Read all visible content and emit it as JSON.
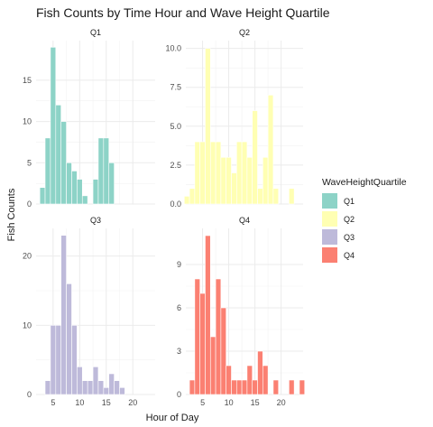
{
  "chart_data": {
    "type": "bar",
    "subtype": "faceted-histogram",
    "title": "Fish Counts by Time Hour and Wave Height Quartile",
    "xlabel": "Hour of Day",
    "ylabel": "Fish Counts",
    "legend": {
      "title": "WaveHeightQuartile",
      "placement": "right",
      "items": [
        "Q1",
        "Q2",
        "Q3",
        "Q4"
      ]
    },
    "grid": true,
    "xlim": [
      1.8,
      24.2
    ],
    "x_ticks": [
      5,
      10,
      15,
      20
    ],
    "bin_width": 1,
    "facets": [
      {
        "name": "Q1",
        "color": "#8DD3C7",
        "ylim": [
          0,
          19.8
        ],
        "y_ticks": [
          0,
          5,
          10,
          15
        ],
        "bins": [
          [
            3,
            2
          ],
          [
            4,
            8
          ],
          [
            5,
            19
          ],
          [
            6,
            12
          ],
          [
            7,
            10
          ],
          [
            8,
            5
          ],
          [
            9,
            4
          ],
          [
            10,
            3
          ],
          [
            11,
            1
          ],
          [
            13,
            3
          ],
          [
            14,
            8
          ],
          [
            15,
            8
          ],
          [
            16,
            5
          ]
        ]
      },
      {
        "name": "Q2",
        "color": "#FFFFB3",
        "ylim": [
          0,
          10.5
        ],
        "y_ticks": [
          0,
          2.5,
          5.0,
          7.5,
          10.0
        ],
        "bins": [
          [
            2,
            0.5
          ],
          [
            3,
            1
          ],
          [
            4,
            4
          ],
          [
            5,
            4
          ],
          [
            6,
            10
          ],
          [
            7,
            4
          ],
          [
            8,
            4
          ],
          [
            9,
            3
          ],
          [
            10,
            3
          ],
          [
            11,
            2
          ],
          [
            12,
            4
          ],
          [
            13,
            4
          ],
          [
            14,
            3
          ],
          [
            15,
            6
          ],
          [
            16,
            1
          ],
          [
            17,
            3
          ],
          [
            18,
            7
          ],
          [
            19,
            1
          ],
          [
            22,
            1
          ]
        ]
      },
      {
        "name": "Q3",
        "color": "#BEBADA",
        "ylim": [
          0,
          24
        ],
        "y_ticks": [
          0,
          10,
          20
        ],
        "bins": [
          [
            4,
            2
          ],
          [
            5,
            10
          ],
          [
            6,
            10
          ],
          [
            7,
            23
          ],
          [
            8,
            16
          ],
          [
            9,
            10
          ],
          [
            10,
            4
          ],
          [
            11,
            2
          ],
          [
            12,
            2
          ],
          [
            13,
            4
          ],
          [
            14,
            2
          ],
          [
            15,
            1
          ],
          [
            16,
            3
          ],
          [
            17,
            2
          ],
          [
            18,
            1
          ]
        ]
      },
      {
        "name": "Q4",
        "color": "#FB8072",
        "ylim": [
          0,
          11.5
        ],
        "y_ticks": [
          0,
          3,
          6,
          9
        ],
        "bins": [
          [
            3,
            1
          ],
          [
            4,
            8
          ],
          [
            5,
            7
          ],
          [
            6,
            11
          ],
          [
            7,
            4
          ],
          [
            8,
            8
          ],
          [
            9,
            6
          ],
          [
            10,
            2
          ],
          [
            11,
            1
          ],
          [
            12,
            1
          ],
          [
            13,
            1
          ],
          [
            14,
            2
          ],
          [
            15,
            1
          ],
          [
            16,
            3
          ],
          [
            17,
            2
          ],
          [
            19,
            1
          ],
          [
            22,
            1
          ],
          [
            24,
            1
          ]
        ]
      }
    ]
  }
}
